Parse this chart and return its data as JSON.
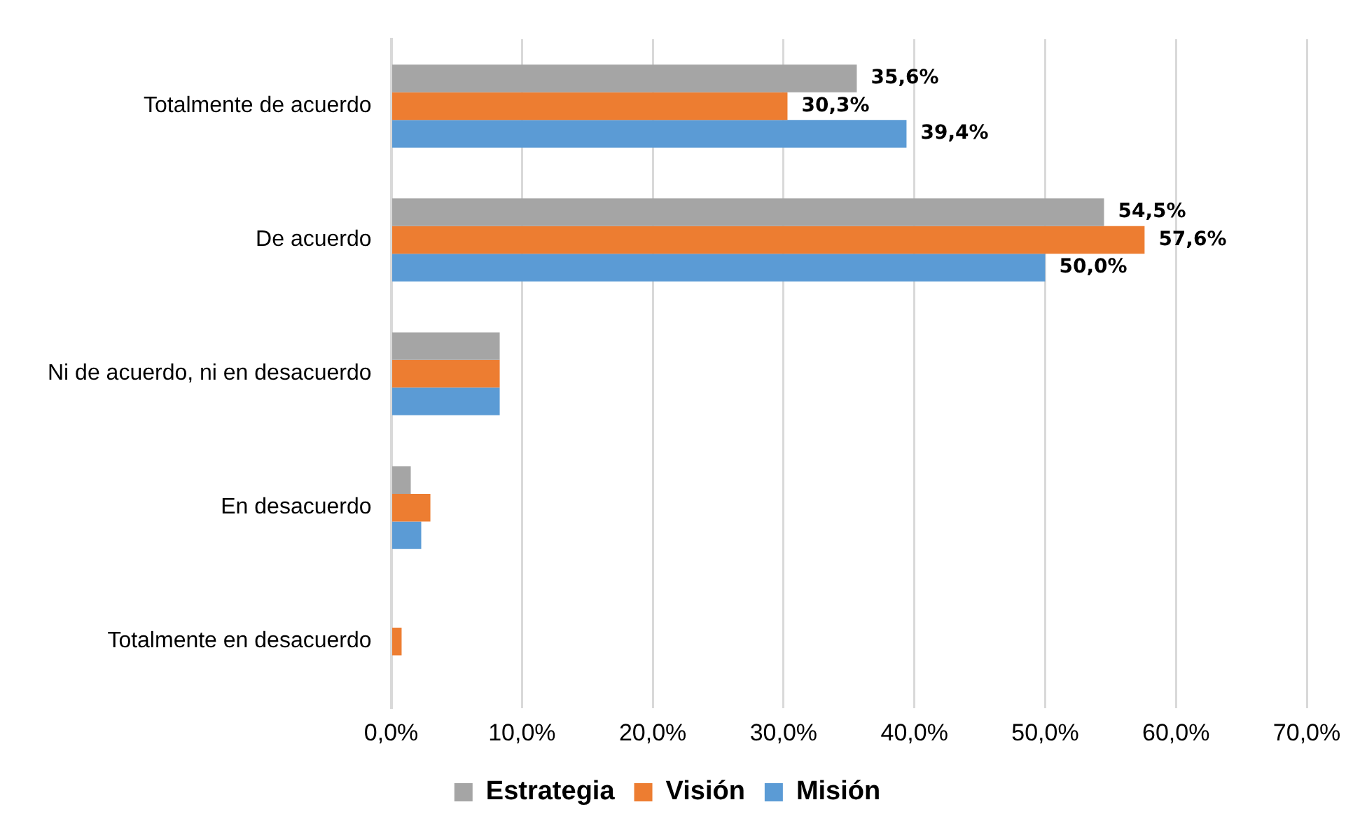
{
  "chart_data": {
    "type": "bar",
    "orientation": "horizontal",
    "categories": [
      "Totalmente de acuerdo",
      "De acuerdo",
      "Ni de acuerdo, ni en desacuerdo",
      "En desacuerdo",
      "Totalmente en desacuerdo"
    ],
    "series": [
      {
        "name": "Estrategia",
        "color": "#a5a5a5",
        "values": [
          35.6,
          54.5,
          8.3,
          1.5,
          null
        ],
        "value_labels": [
          "35,6%",
          "54,5%",
          null,
          null,
          null
        ]
      },
      {
        "name": "Visión",
        "color": "#ed7d31",
        "values": [
          30.3,
          57.6,
          8.3,
          3.0,
          0.8
        ],
        "value_labels": [
          "30,3%",
          "57,6%",
          null,
          null,
          null
        ]
      },
      {
        "name": "Misión",
        "color": "#5b9bd5",
        "values": [
          39.4,
          50.0,
          8.3,
          2.3,
          null
        ],
        "value_labels": [
          "39,4%",
          "50,0%",
          null,
          null,
          null
        ]
      }
    ],
    "xlim": [
      0,
      70
    ],
    "xticks": [
      {
        "value": 0,
        "label": "0,0%"
      },
      {
        "value": 10,
        "label": "10,0%"
      },
      {
        "value": 20,
        "label": "20,0%"
      },
      {
        "value": 30,
        "label": "30,0%"
      },
      {
        "value": 40,
        "label": "40,0%"
      },
      {
        "value": 50,
        "label": "50,0%"
      },
      {
        "value": 60,
        "label": "60,0%"
      },
      {
        "value": 70,
        "label": "70,0%"
      }
    ],
    "grid": "x",
    "legend": "bottom"
  }
}
